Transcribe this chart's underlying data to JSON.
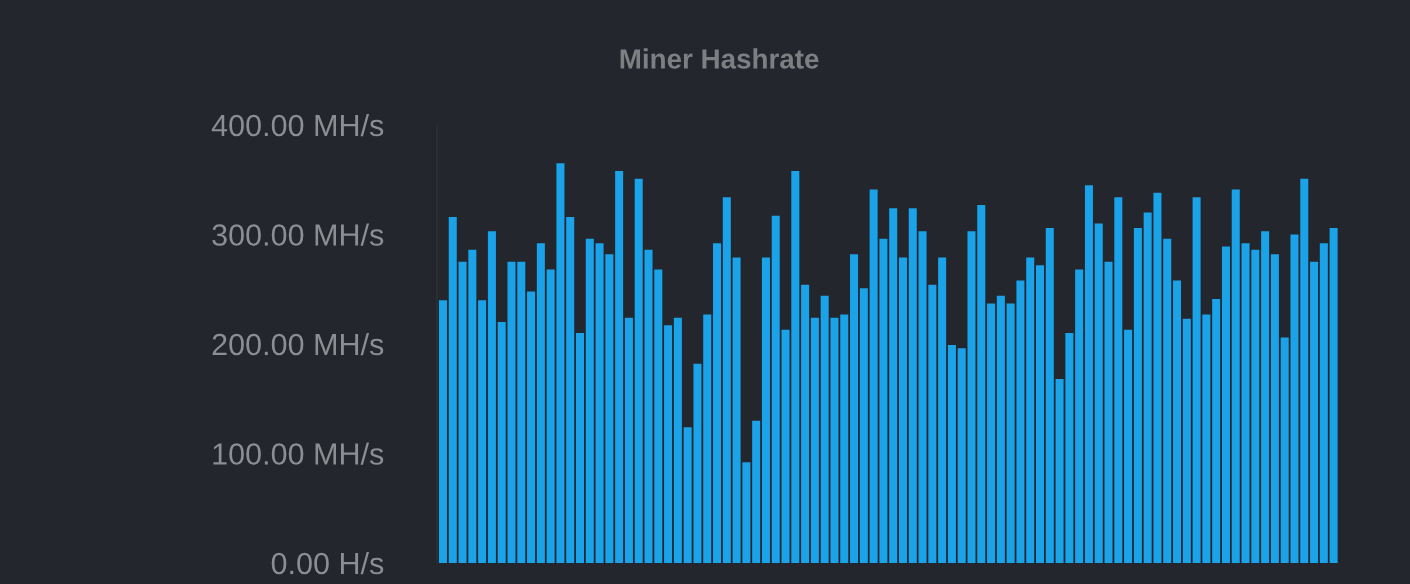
{
  "chart_data": {
    "type": "bar",
    "title": "Miner Hashrate",
    "categories": [
      null,
      null,
      null,
      null,
      null,
      null,
      null,
      null,
      null,
      null,
      null,
      null,
      null,
      null,
      null,
      null,
      null,
      null,
      null,
      null,
      null,
      null,
      null,
      null,
      null,
      null,
      null,
      null,
      null,
      null,
      null,
      null,
      null,
      null,
      null,
      null,
      null,
      null,
      null,
      null,
      null,
      null,
      null,
      null,
      null,
      null,
      null,
      null,
      null,
      null,
      null,
      null,
      null,
      null,
      null,
      null,
      null,
      null,
      null,
      null,
      null,
      null,
      null,
      null,
      null,
      null,
      null,
      null,
      null,
      null,
      null,
      null,
      null,
      null,
      null,
      null,
      null,
      null,
      null,
      null,
      null,
      null,
      null,
      null,
      null,
      null,
      null,
      null,
      null,
      null,
      null,
      null
    ],
    "values": [
      240,
      316,
      275,
      286,
      240,
      303,
      220,
      275,
      275,
      248,
      292,
      268,
      365,
      316,
      210,
      296,
      292,
      282,
      358,
      224,
      351,
      286,
      268,
      217,
      224,
      124,
      182,
      227,
      292,
      334,
      279,
      92,
      130,
      279,
      317,
      213,
      358,
      254,
      224,
      244,
      224,
      227,
      282,
      251,
      341,
      296,
      324,
      279,
      324,
      303,
      254,
      279,
      199,
      196,
      303,
      327,
      237,
      244,
      237,
      258,
      279,
      272,
      306,
      168,
      210,
      268,
      345,
      310,
      275,
      334,
      213,
      306,
      320,
      338,
      296,
      258,
      223,
      334,
      227,
      241,
      289,
      341,
      292,
      286,
      303,
      282,
      206,
      300,
      351,
      275,
      292,
      306
    ],
    "color": "#1aa3e8",
    "ylim": [
      0,
      400
    ],
    "yticks": [
      {
        "value": 0,
        "label": "0.00 H/s"
      },
      {
        "value": 100,
        "label": "100.00 MH/s"
      },
      {
        "value": 200,
        "label": "200.00 MH/s"
      },
      {
        "value": 300,
        "label": "300.00 MH/s"
      },
      {
        "value": 400,
        "label": "400.00 MH/s"
      }
    ],
    "grid": false
  }
}
